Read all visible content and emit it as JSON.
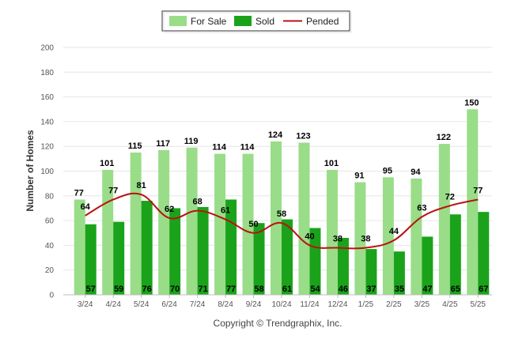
{
  "chart_data": {
    "type": "bar",
    "categories": [
      "3/24",
      "4/24",
      "5/24",
      "6/24",
      "7/24",
      "8/24",
      "9/24",
      "10/24",
      "11/24",
      "12/24",
      "1/25",
      "2/25",
      "3/25",
      "4/25",
      "5/25"
    ],
    "series": [
      {
        "name": "For Sale",
        "kind": "bar",
        "color": "#99dd88",
        "values": [
          77,
          101,
          115,
          117,
          119,
          114,
          114,
          124,
          123,
          101,
          91,
          95,
          94,
          122,
          150
        ]
      },
      {
        "name": "Sold",
        "kind": "bar",
        "color": "#1aa31a",
        "values": [
          57,
          59,
          76,
          70,
          71,
          77,
          58,
          61,
          54,
          46,
          37,
          35,
          47,
          65,
          67
        ]
      },
      {
        "name": "Pended",
        "kind": "line",
        "color": "#bb1111",
        "values": [
          64,
          77,
          81,
          62,
          68,
          61,
          50,
          58,
          40,
          38,
          38,
          44,
          63,
          72,
          77
        ]
      }
    ],
    "xlabel": "",
    "ylabel": "Number of Homes",
    "ylim": [
      0,
      200
    ],
    "yticks": [
      0,
      20,
      40,
      60,
      80,
      100,
      120,
      140,
      160,
      180,
      200
    ],
    "grid": true,
    "legend_position": "top-center",
    "footer": "Copyright © Trendgraphix, Inc."
  }
}
